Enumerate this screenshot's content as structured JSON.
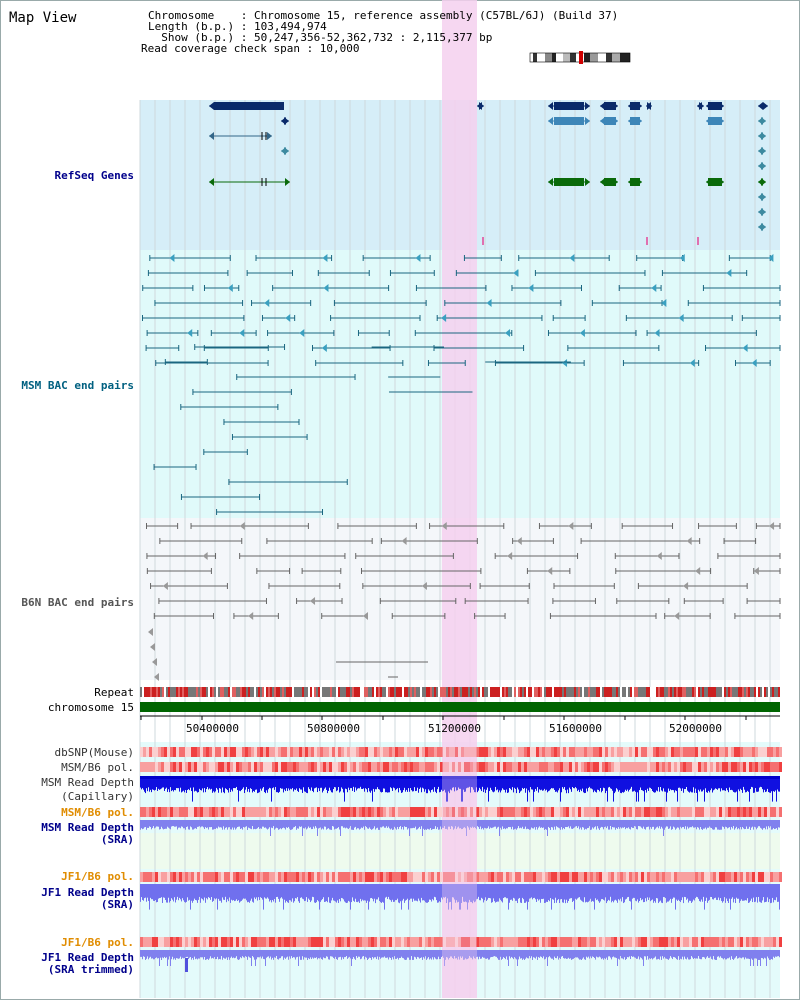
{
  "header": {
    "title": "Map View",
    "chromosome_line": "Chromosome    : Chromosome 15, reference assembly (C57BL/6J) (Build 37)",
    "length_line": "Length (b.p.) : 103,494,974",
    "show_line": "  Show (b.p.) : 50,247,356-52,362,732 : 2,115,377 bp",
    "coverage_line": "Read coverage check span : 10,000"
  },
  "tracks": {
    "refseq": "RefSeq Genes",
    "msm_bac": "MSM BAC end pairs",
    "b6n_bac": "B6N BAC end pairs",
    "repeat": "Repeat",
    "chromosome": "chromosome 15",
    "dbsnp": "dbSNP(Mouse)",
    "msm_b6_pol_1": "MSM/B6 pol.",
    "msm_depth_cap_1": "MSM Read Depth",
    "msm_depth_cap_2": "(Capillary)",
    "msm_b6_pol_2": "MSM/B6 pol.",
    "msm_depth_sra_1": "MSM Read Depth",
    "msm_depth_sra_2": "(SRA)",
    "jf1_b6_pol_1": "JF1/B6 pol.",
    "jf1_depth_sra_1": "JF1 Read Depth",
    "jf1_depth_sra_2": "(SRA)",
    "jf1_b6_pol_2": "JF1/B6 pol.",
    "jf1_depth_trim_1": "JF1 Read Depth",
    "jf1_depth_trim_2": "(SRA trimmed)"
  },
  "axis": {
    "ticks": [
      "50400000",
      "50800000",
      "51200000",
      "51600000",
      "52000000"
    ]
  },
  "colors": {
    "refseq_bg": "#d6eef8",
    "msm_bg": "#e0fafa",
    "b6n_bg": "#f4f7fa",
    "highlight": "#f5d0ee",
    "refseq_label": "#00008b",
    "msm_label": "#006080",
    "b6n_label": "#555555",
    "pol_label": "#e08c00",
    "depth_label": "#00008b",
    "chromosome_bar": "#006400"
  }
}
